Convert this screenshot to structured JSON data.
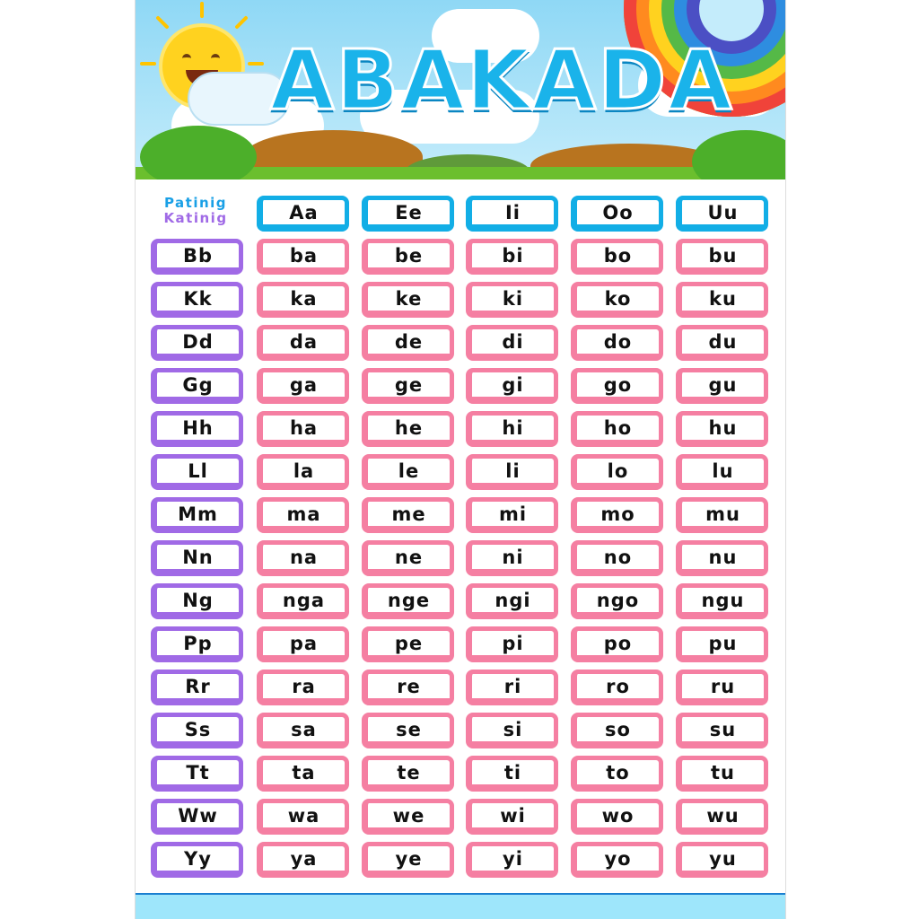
{
  "title": "ABAKADA",
  "legend": {
    "vowels_label": "Patinig",
    "consonants_label": "Katinig"
  },
  "colors": {
    "vowel": "#12aee6",
    "consonant": "#a06ae6",
    "syllable": "#f57fa2",
    "title": "#1ab3ea"
  },
  "vowels": [
    "Aa",
    "Ee",
    "Ii",
    "Oo",
    "Uu"
  ],
  "rows": [
    {
      "consonant": "Bb",
      "syllables": [
        "ba",
        "be",
        "bi",
        "bo",
        "bu"
      ]
    },
    {
      "consonant": "Kk",
      "syllables": [
        "ka",
        "ke",
        "ki",
        "ko",
        "ku"
      ]
    },
    {
      "consonant": "Dd",
      "syllables": [
        "da",
        "de",
        "di",
        "do",
        "du"
      ]
    },
    {
      "consonant": "Gg",
      "syllables": [
        "ga",
        "ge",
        "gi",
        "go",
        "gu"
      ]
    },
    {
      "consonant": "Hh",
      "syllables": [
        "ha",
        "he",
        "hi",
        "ho",
        "hu"
      ]
    },
    {
      "consonant": "Ll",
      "syllables": [
        "la",
        "le",
        "li",
        "lo",
        "lu"
      ]
    },
    {
      "consonant": "Mm",
      "syllables": [
        "ma",
        "me",
        "mi",
        "mo",
        "mu"
      ]
    },
    {
      "consonant": "Nn",
      "syllables": [
        "na",
        "ne",
        "ni",
        "no",
        "nu"
      ]
    },
    {
      "consonant": "Ng",
      "syllables": [
        "nga",
        "nge",
        "ngi",
        "ngo",
        "ngu"
      ]
    },
    {
      "consonant": "Pp",
      "syllables": [
        "pa",
        "pe",
        "pi",
        "po",
        "pu"
      ]
    },
    {
      "consonant": "Rr",
      "syllables": [
        "ra",
        "re",
        "ri",
        "ro",
        "ru"
      ]
    },
    {
      "consonant": "Ss",
      "syllables": [
        "sa",
        "se",
        "si",
        "so",
        "su"
      ]
    },
    {
      "consonant": "Tt",
      "syllables": [
        "ta",
        "te",
        "ti",
        "to",
        "tu"
      ]
    },
    {
      "consonant": "Ww",
      "syllables": [
        "wa",
        "we",
        "wi",
        "wo",
        "wu"
      ]
    },
    {
      "consonant": "Yy",
      "syllables": [
        "ya",
        "ye",
        "yi",
        "yo",
        "yu"
      ]
    }
  ]
}
